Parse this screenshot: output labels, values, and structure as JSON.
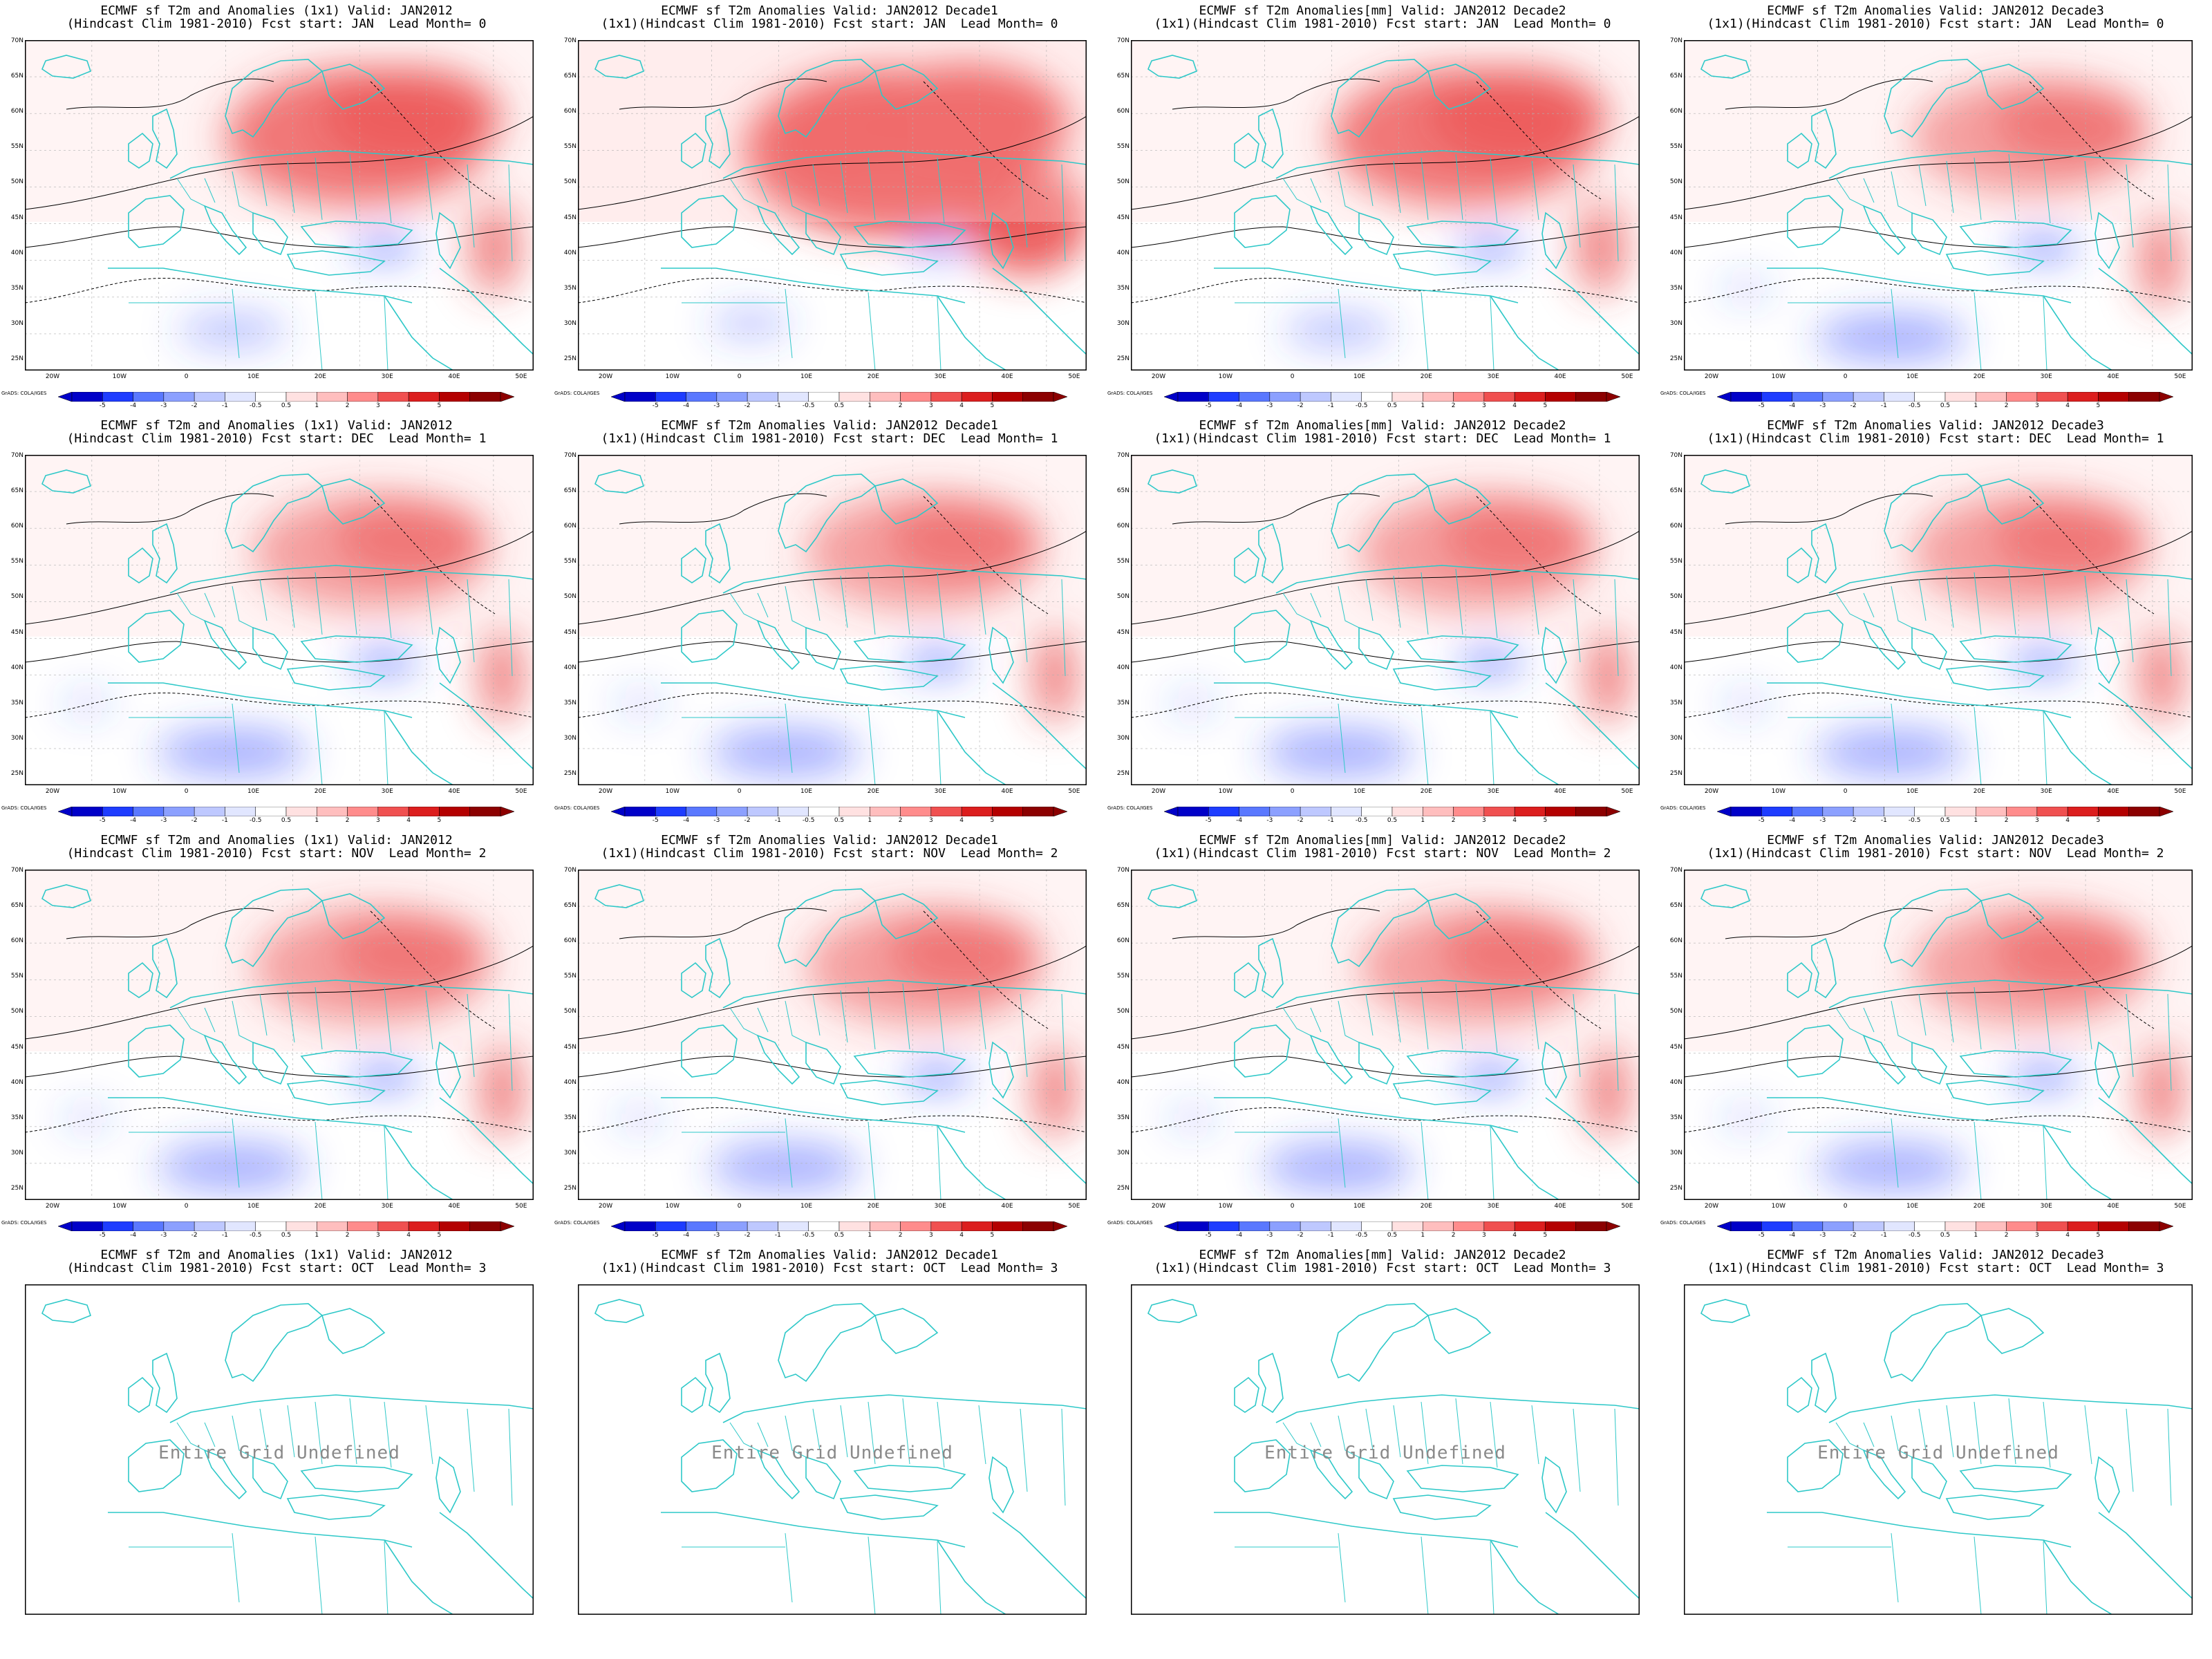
{
  "colors": {
    "land_outline": "#2ec8c8",
    "contour": "#000000",
    "grid": "#b0b0b0",
    "scale": [
      "#0000c8",
      "#1e3cff",
      "#5a78ff",
      "#8ca0ff",
      "#bec8ff",
      "#e1e6ff",
      "#ffffff",
      "#ffe1e1",
      "#ffbebe",
      "#ff8c8c",
      "#f05050",
      "#dc1e1e",
      "#b40000",
      "#8c0000"
    ]
  },
  "map_axes": {
    "lat_labels": [
      "70N",
      "65N",
      "60N",
      "55N",
      "50N",
      "45N",
      "40N",
      "35N",
      "30N",
      "25N"
    ],
    "lon_labels": [
      "20W",
      "10W",
      "0",
      "10E",
      "20E",
      "30E",
      "40E",
      "50E"
    ]
  },
  "colorbar_labels": [
    "-5",
    "-4",
    "-3",
    "-2",
    "-1",
    "-0.5",
    "0.5",
    "1",
    "2",
    "3",
    "4",
    "5"
  ],
  "grads_credit": "GrADS: COLA/IGES",
  "panels": [
    {
      "title1": "ECMWF sf T2m and Anomalies (1x1) Valid: JAN2012",
      "title2": "(Hindcast Clim 1981-2010) Fcst start: JAN  Lead Month= 0",
      "anomaly": "warm"
    },
    {
      "title1": "ECMWF sf T2m Anomalies Valid: JAN2012 Decade1",
      "title2": "(1x1)(Hindcast Clim 1981-2010) Fcst start: JAN  Lead Month= 0",
      "anomaly": "very-warm"
    },
    {
      "title1": "ECMWF sf T2m Anomalies[mm] Valid: JAN2012 Decade2",
      "title2": "(1x1)(Hindcast Clim 1981-2010) Fcst start: JAN  Lead Month= 0",
      "anomaly": "warm"
    },
    {
      "title1": "ECMWF sf T2m Anomalies Valid: JAN2012 Decade3",
      "title2": "(1x1)(Hindcast Clim 1981-2010) Fcst start: JAN  Lead Month= 0",
      "anomaly": "mild"
    },
    {
      "title1": "ECMWF sf T2m and Anomalies (1x1) Valid: JAN2012",
      "title2": "(Hindcast Clim 1981-2010) Fcst start: DEC  Lead Month= 1",
      "anomaly": "mild"
    },
    {
      "title1": "ECMWF sf T2m Anomalies Valid: JAN2012 Decade1",
      "title2": "(1x1)(Hindcast Clim 1981-2010) Fcst start: DEC  Lead Month= 1",
      "anomaly": "mild"
    },
    {
      "title1": "ECMWF sf T2m Anomalies[mm] Valid: JAN2012 Decade2",
      "title2": "(1x1)(Hindcast Clim 1981-2010) Fcst start: DEC  Lead Month= 1",
      "anomaly": "mild"
    },
    {
      "title1": "ECMWF sf T2m Anomalies Valid: JAN2012 Decade3",
      "title2": "(1x1)(Hindcast Clim 1981-2010) Fcst start: DEC  Lead Month= 1",
      "anomaly": "mild"
    },
    {
      "title1": "ECMWF sf T2m and Anomalies (1x1) Valid: JAN2012",
      "title2": "(Hindcast Clim 1981-2010) Fcst start: NOV  Lead Month= 2",
      "anomaly": "mild"
    },
    {
      "title1": "ECMWF sf T2m Anomalies Valid: JAN2012 Decade1",
      "title2": "(1x1)(Hindcast Clim 1981-2010) Fcst start: NOV  Lead Month= 2",
      "anomaly": "mild"
    },
    {
      "title1": "ECMWF sf T2m Anomalies[mm] Valid: JAN2012 Decade2",
      "title2": "(1x1)(Hindcast Clim 1981-2010) Fcst start: NOV  Lead Month= 2",
      "anomaly": "mild"
    },
    {
      "title1": "ECMWF sf T2m Anomalies Valid: JAN2012 Decade3",
      "title2": "(1x1)(Hindcast Clim 1981-2010) Fcst start: NOV  Lead Month= 2",
      "anomaly": "mild"
    },
    {
      "title1": "ECMWF sf T2m and Anomalies (1x1) Valid: JAN2012",
      "title2": "(Hindcast Clim 1981-2010) Fcst start: OCT  Lead Month= 3",
      "anomaly": "undefined",
      "message": "Entire Grid Undefined"
    },
    {
      "title1": "ECMWF sf T2m Anomalies Valid: JAN2012 Decade1",
      "title2": "(1x1)(Hindcast Clim 1981-2010) Fcst start: OCT  Lead Month= 3",
      "anomaly": "undefined",
      "message": "Entire Grid Undefined"
    },
    {
      "title1": "ECMWF sf T2m Anomalies[mm] Valid: JAN2012 Decade2",
      "title2": "(1x1)(Hindcast Clim 1981-2010) Fcst start: OCT  Lead Month= 3",
      "anomaly": "undefined",
      "message": "Entire Grid Undefined"
    },
    {
      "title1": "ECMWF sf T2m Anomalies Valid: JAN2012 Decade3",
      "title2": "(1x1)(Hindcast Clim 1981-2010) Fcst start: OCT  Lead Month= 3",
      "anomaly": "undefined",
      "message": "Entire Grid Undefined"
    }
  ]
}
